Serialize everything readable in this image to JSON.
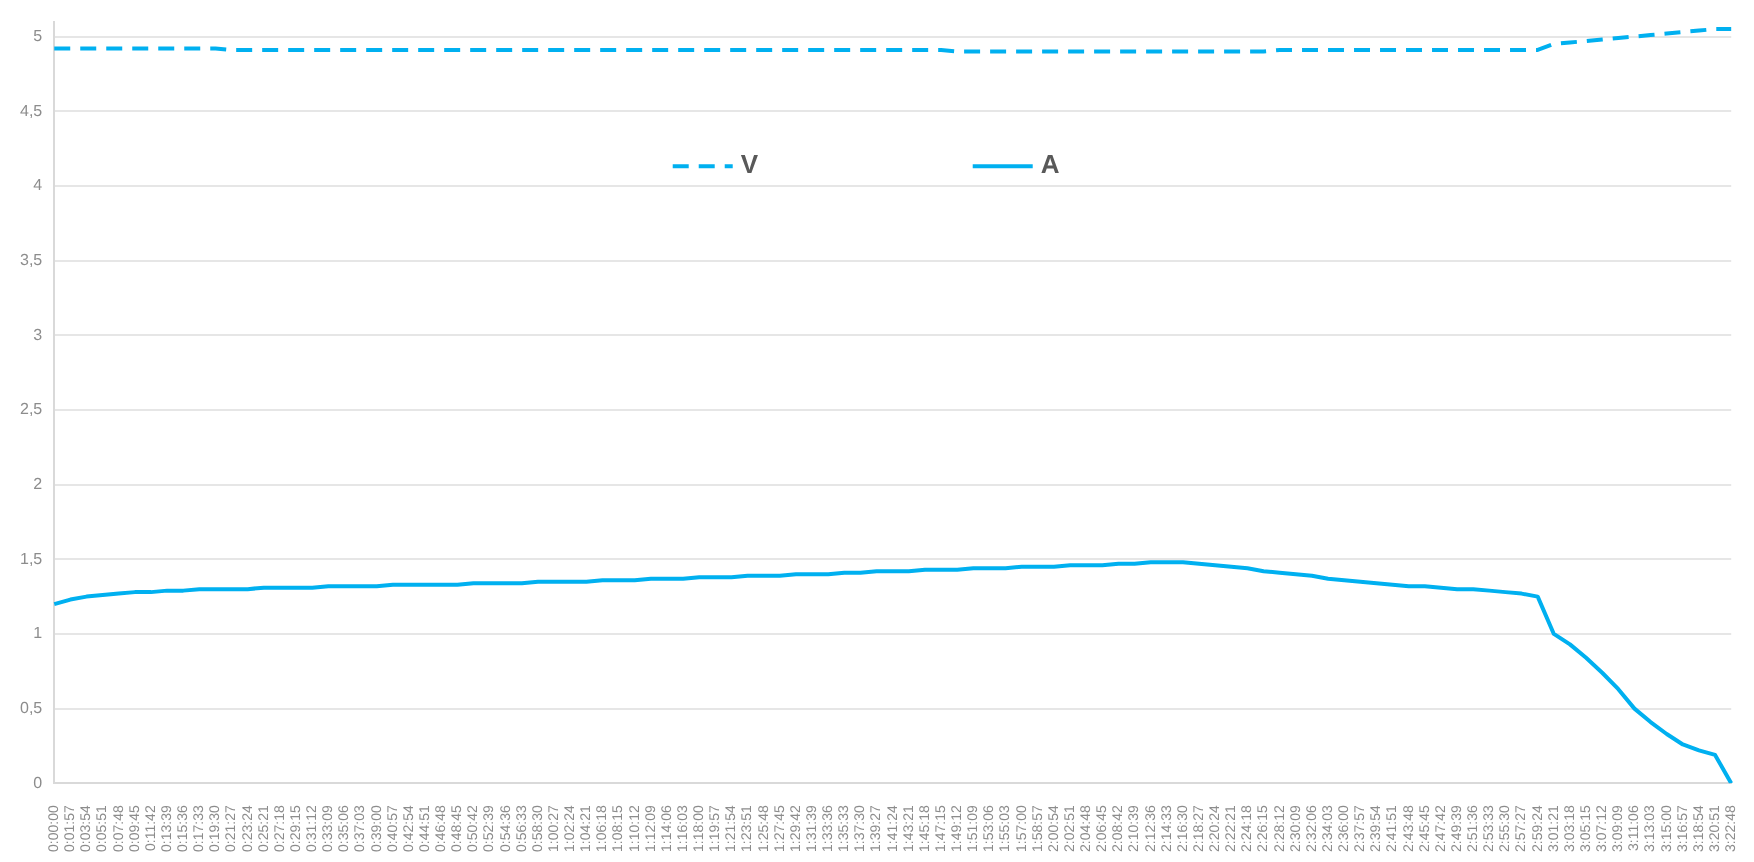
{
  "chart_data": {
    "type": "line",
    "categories": [
      "0:00:00",
      "0:01:57",
      "0:03:54",
      "0:05:51",
      "0:07:48",
      "0:09:45",
      "0:11:42",
      "0:13:39",
      "0:15:36",
      "0:17:33",
      "0:19:30",
      "0:21:27",
      "0:23:24",
      "0:25:21",
      "0:27:18",
      "0:29:15",
      "0:31:12",
      "0:33:09",
      "0:35:06",
      "0:37:03",
      "0:39:00",
      "0:40:57",
      "0:42:54",
      "0:44:51",
      "0:46:48",
      "0:48:45",
      "0:50:42",
      "0:52:39",
      "0:54:36",
      "0:56:33",
      "0:58:30",
      "1:00:27",
      "1:02:24",
      "1:04:21",
      "1:06:18",
      "1:08:15",
      "1:10:12",
      "1:12:09",
      "1:14:06",
      "1:16:03",
      "1:18:00",
      "1:19:57",
      "1:21:54",
      "1:23:51",
      "1:25:48",
      "1:27:45",
      "1:29:42",
      "1:31:39",
      "1:33:36",
      "1:35:33",
      "1:37:30",
      "1:39:27",
      "1:41:24",
      "1:43:21",
      "1:45:18",
      "1:47:15",
      "1:49:12",
      "1:51:09",
      "1:53:06",
      "1:55:03",
      "1:57:00",
      "1:58:57",
      "2:00:54",
      "2:02:51",
      "2:04:48",
      "2:06:45",
      "2:08:42",
      "2:10:39",
      "2:12:36",
      "2:14:33",
      "2:16:30",
      "2:18:27",
      "2:20:24",
      "2:22:21",
      "2:24:18",
      "2:26:15",
      "2:28:12",
      "2:30:09",
      "2:32:06",
      "2:34:03",
      "2:36:00",
      "2:37:57",
      "2:39:54",
      "2:41:51",
      "2:43:48",
      "2:45:45",
      "2:47:42",
      "2:49:39",
      "2:51:36",
      "2:53:33",
      "2:55:30",
      "2:57:27",
      "2:59:24",
      "3:01:21",
      "3:03:18",
      "3:05:15",
      "3:07:12",
      "3:09:09",
      "3:11:06",
      "3:13:03",
      "3:15:00",
      "3:16:57",
      "3:18:54",
      "3:20:51",
      "3:22:48"
    ],
    "series": [
      {
        "name": "V",
        "color": "#00b0f0",
        "line_style": "dashed",
        "values": [
          4.92,
          4.92,
          4.92,
          4.92,
          4.92,
          4.92,
          4.92,
          4.92,
          4.92,
          4.92,
          4.92,
          4.91,
          4.91,
          4.91,
          4.91,
          4.91,
          4.91,
          4.91,
          4.91,
          4.91,
          4.91,
          4.91,
          4.91,
          4.91,
          4.91,
          4.91,
          4.91,
          4.91,
          4.91,
          4.91,
          4.91,
          4.91,
          4.91,
          4.91,
          4.91,
          4.91,
          4.91,
          4.91,
          4.91,
          4.91,
          4.91,
          4.91,
          4.91,
          4.91,
          4.91,
          4.91,
          4.91,
          4.91,
          4.91,
          4.91,
          4.91,
          4.91,
          4.91,
          4.91,
          4.91,
          4.91,
          4.9,
          4.9,
          4.9,
          4.9,
          4.9,
          4.9,
          4.9,
          4.9,
          4.9,
          4.9,
          4.9,
          4.9,
          4.9,
          4.9,
          4.9,
          4.9,
          4.9,
          4.9,
          4.9,
          4.9,
          4.91,
          4.91,
          4.91,
          4.91,
          4.91,
          4.91,
          4.91,
          4.91,
          4.91,
          4.91,
          4.91,
          4.91,
          4.91,
          4.91,
          4.91,
          4.91,
          4.91,
          4.95,
          4.96,
          4.97,
          4.98,
          4.99,
          5.0,
          5.01,
          5.02,
          5.03,
          5.04,
          5.05,
          5.05
        ]
      },
      {
        "name": "A",
        "color": "#00b0f0",
        "line_style": "solid",
        "values": [
          1.2,
          1.23,
          1.25,
          1.26,
          1.27,
          1.28,
          1.28,
          1.29,
          1.29,
          1.3,
          1.3,
          1.3,
          1.3,
          1.31,
          1.31,
          1.31,
          1.31,
          1.32,
          1.32,
          1.32,
          1.32,
          1.33,
          1.33,
          1.33,
          1.33,
          1.33,
          1.34,
          1.34,
          1.34,
          1.34,
          1.35,
          1.35,
          1.35,
          1.35,
          1.36,
          1.36,
          1.36,
          1.37,
          1.37,
          1.37,
          1.38,
          1.38,
          1.38,
          1.39,
          1.39,
          1.39,
          1.4,
          1.4,
          1.4,
          1.41,
          1.41,
          1.42,
          1.42,
          1.42,
          1.43,
          1.43,
          1.43,
          1.44,
          1.44,
          1.44,
          1.45,
          1.45,
          1.45,
          1.46,
          1.46,
          1.46,
          1.47,
          1.47,
          1.48,
          1.48,
          1.48,
          1.47,
          1.46,
          1.45,
          1.44,
          1.42,
          1.41,
          1.4,
          1.39,
          1.37,
          1.36,
          1.35,
          1.34,
          1.33,
          1.32,
          1.32,
          1.31,
          1.3,
          1.3,
          1.29,
          1.28,
          1.27,
          1.25,
          1.0,
          0.93,
          0.84,
          0.74,
          0.63,
          0.5,
          0.41,
          0.33,
          0.26,
          0.22,
          0.19,
          0.0
        ]
      }
    ],
    "ylim": [
      0,
      5.1
    ],
    "yticks": [
      0,
      {
        "value": 0.5,
        "label": "0,5"
      },
      1,
      {
        "value": 1.5,
        "label": "1,5"
      },
      2,
      {
        "value": 2.5,
        "label": "2,5"
      },
      3,
      {
        "value": 3.5,
        "label": "3,5"
      },
      4,
      {
        "value": 4.5,
        "label": "4,5"
      },
      5
    ],
    "grid": "y",
    "legend": "top",
    "marker": "none"
  }
}
